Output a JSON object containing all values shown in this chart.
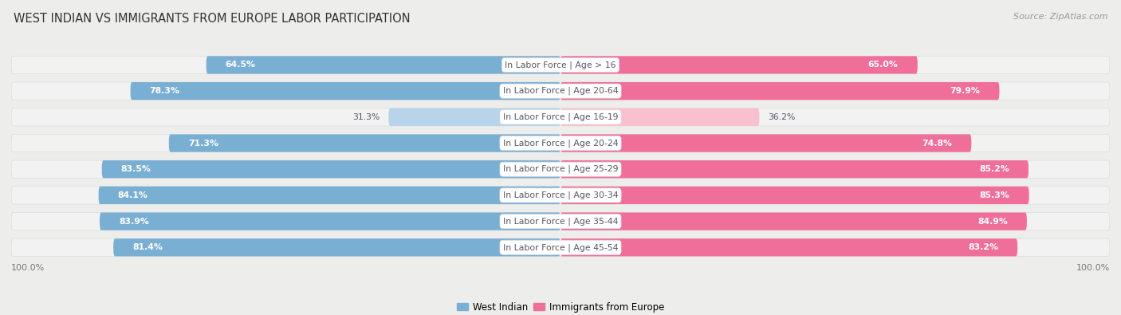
{
  "title": "WEST INDIAN VS IMMIGRANTS FROM EUROPE LABOR PARTICIPATION",
  "source": "Source: ZipAtlas.com",
  "categories": [
    "In Labor Force | Age > 16",
    "In Labor Force | Age 20-64",
    "In Labor Force | Age 16-19",
    "In Labor Force | Age 20-24",
    "In Labor Force | Age 25-29",
    "In Labor Force | Age 30-34",
    "In Labor Force | Age 35-44",
    "In Labor Force | Age 45-54"
  ],
  "west_indian": [
    64.5,
    78.3,
    31.3,
    71.3,
    83.5,
    84.1,
    83.9,
    81.4
  ],
  "immigrants_europe": [
    65.0,
    79.9,
    36.2,
    74.8,
    85.2,
    85.3,
    84.9,
    83.2
  ],
  "west_indian_color": "#7AAFD4",
  "immigrants_europe_color": "#EF6F9A",
  "west_indian_light_color": "#B8D4EA",
  "immigrants_europe_light_color": "#F9C0D0",
  "background_color": "#EDEDEC",
  "row_bg_color": "#F2F2F2",
  "row_border_color": "#DCDCDC",
  "label_bg_color": "#FFFFFF",
  "label_text_color": "#555566",
  "legend_label_1": "West Indian",
  "legend_label_2": "Immigrants from Europe",
  "axis_label_left": "100.0%",
  "axis_label_right": "100.0%",
  "bar_height": 0.68,
  "max_val": 100.0,
  "threshold": 50.0
}
